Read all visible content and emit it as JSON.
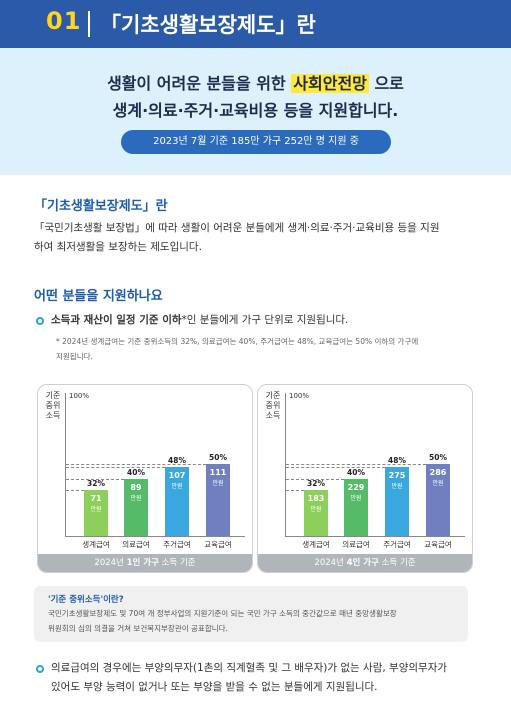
{
  "header": {
    "number": "01",
    "title": "「기초생활보장제도」란"
  },
  "hero": {
    "line1_before": "생활이 어려운 분들을 위한 ",
    "line1_highlight": "사회안전망",
    "line1_after": " 으로",
    "line2": "생계·의료·주거·교육비용 등을 지원합니다.",
    "badge": "2023년 7월 기준 185만 가구 252만 명 지원 중"
  },
  "section1": {
    "heading": "「기초생활보장제도」란",
    "line1": "「국민기초생활 보장법」에 따라 생활이 어려운 분들에게 생계·의료·주거·교육비용 등을 지원",
    "line2": "하여 최저생활을 보장하는 제도입니다."
  },
  "section2": {
    "heading": "어떤 분들을 지원하나요",
    "bullet1_bold": "소득과 재산이 일정 기준 이하",
    "bullet1_rest": "*인 분들에게 가구 단위로 지원됩니다.",
    "note1": "* 2024년 생계급여는 기준 중위소득의 32%, 의료급여는 40%, 주거급여는 48%, 교육급여는 50% 이하의 가구에",
    "note2": "지원됩니다."
  },
  "chart_data": [
    {
      "type": "bar",
      "ylabel": "기준 중위 소득",
      "ymax_label": "100%",
      "categories": [
        "생계급여",
        "의료급여",
        "주거급여",
        "교육급여"
      ],
      "percent_labels": [
        "32%",
        "40%",
        "48%",
        "50%"
      ],
      "percent": [
        32,
        40,
        48,
        50
      ],
      "values": [
        71,
        89,
        107,
        111
      ],
      "unit": "만원",
      "footer_prefix": "2024년 ",
      "footer_bold": "1인 가구",
      "footer_suffix": " 소득 기준"
    },
    {
      "type": "bar",
      "ylabel": "기준 중위 소득",
      "ymax_label": "100%",
      "categories": [
        "생계급여",
        "의료급여",
        "주거급여",
        "교육급여"
      ],
      "percent_labels": [
        "32%",
        "40%",
        "48%",
        "50%"
      ],
      "percent": [
        32,
        40,
        48,
        50
      ],
      "values": [
        183,
        229,
        275,
        286
      ],
      "unit": "만원",
      "footer_prefix": "2024년 ",
      "footer_bold": "4인 가구",
      "footer_suffix": " 소득 기준"
    }
  ],
  "colors": [
    "#8ccf5b",
    "#55bb68",
    "#3aa8de",
    "#6f7fc0"
  ],
  "info": {
    "title": "'기준 중위소득'이란?",
    "line1": "국민기초생활보장제도 및 70여 개 정부사업의 지원기준이 되는 국민 가구 소득의 중간값으로 매년 중앙생활보장",
    "line2": "위원회의 심의 의결을 거쳐 보건복지부장관이 공표합니다."
  },
  "bullet2": {
    "line1": "의료급여의 경우에는 부양의무자(1촌의 직계혈족 및 그 배우자)가 없는 사람, 부양의무자가",
    "line2": "있어도 부양 능력이 없거나 또는 부양을 받을 수 없는 분들에게 지원됩니다."
  }
}
